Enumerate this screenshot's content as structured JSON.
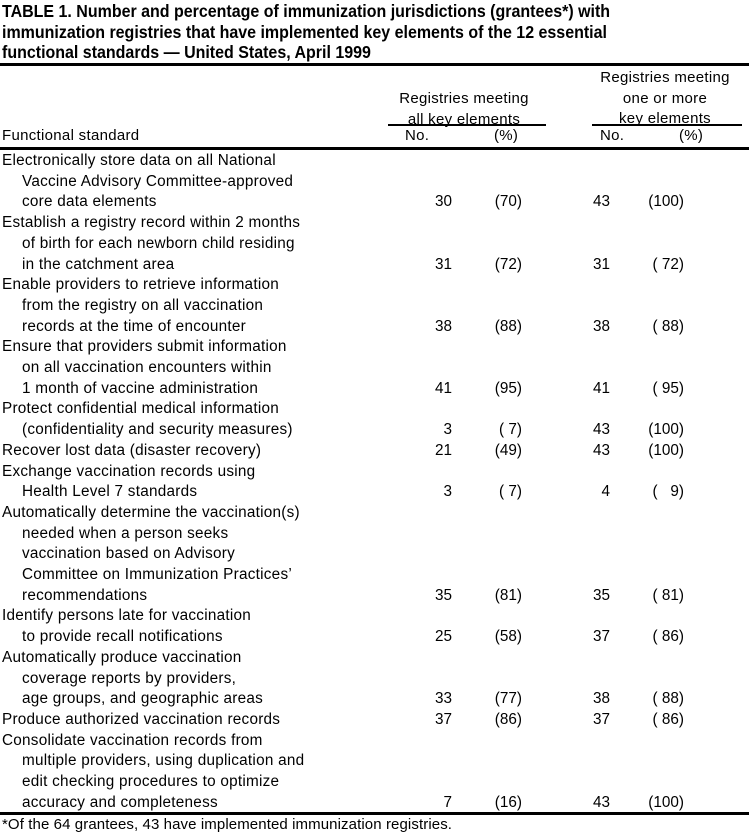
{
  "title": "TABLE 1. Number and percentage of immunization jurisdictions (grantees*) with immunization registries that have implemented key elements of the 12 essential functional standards — United States, April 1999",
  "title_lines": [
    "TABLE 1. Number and percentage of immunization jurisdictions (grantees*) with",
    "immunization registries that have implemented key elements of the 12 essential",
    "functional standards — United States, April 1999"
  ],
  "header": {
    "functional_standard": "Functional standard",
    "group_all": [
      "Registries meeting",
      "all key elements"
    ],
    "group_one": [
      "Registries meeting",
      "one or more",
      "key elements"
    ],
    "no": "No.",
    "pct": "(%)"
  },
  "rows": [
    {
      "lines": [
        "Electronically store data on all National",
        "Vaccine Advisory Committee-approved",
        "core data elements"
      ],
      "all_no": "30",
      "all_pct": "(70)",
      "one_no": "43",
      "one_pct": "(100)"
    },
    {
      "lines": [
        "Establish a registry record within 2 months",
        "of birth for each newborn child residing",
        "in the catchment area"
      ],
      "all_no": "31",
      "all_pct": "(72)",
      "one_no": "31",
      "one_pct": "( 72)"
    },
    {
      "lines": [
        "Enable providers to retrieve information",
        "from the registry on all vaccination",
        "records at the time of encounter"
      ],
      "all_no": "38",
      "all_pct": "(88)",
      "one_no": "38",
      "one_pct": "( 88)"
    },
    {
      "lines": [
        "Ensure that providers submit information",
        "on all vaccination encounters within",
        "1 month of vaccine administration"
      ],
      "all_no": "41",
      "all_pct": "(95)",
      "one_no": "41",
      "one_pct": "( 95)"
    },
    {
      "lines": [
        "Protect confidential medical information",
        "(confidentiality and security measures)"
      ],
      "all_no": "3",
      "all_pct": "( 7)",
      "one_no": "43",
      "one_pct": "(100)"
    },
    {
      "lines": [
        "Recover lost data (disaster recovery)"
      ],
      "all_no": "21",
      "all_pct": "(49)",
      "one_no": "43",
      "one_pct": "(100)"
    },
    {
      "lines": [
        "Exchange vaccination records using",
        "Health Level 7 standards"
      ],
      "all_no": "3",
      "all_pct": "( 7)",
      "one_no": "4",
      "one_pct": "(   9)"
    },
    {
      "lines": [
        "Automatically determine the vaccination(s)",
        "needed when a person seeks",
        "vaccination based on Advisory",
        "Committee on Immunization Practices’",
        "recommendations"
      ],
      "all_no": "35",
      "all_pct": "(81)",
      "one_no": "35",
      "one_pct": "( 81)"
    },
    {
      "lines": [
        "Identify persons late for vaccination",
        "to provide recall notifications"
      ],
      "all_no": "25",
      "all_pct": "(58)",
      "one_no": "37",
      "one_pct": "( 86)"
    },
    {
      "lines": [
        "Automatically produce vaccination",
        "coverage reports by providers,",
        "age groups, and geographic areas"
      ],
      "all_no": "33",
      "all_pct": "(77)",
      "one_no": "38",
      "one_pct": "( 88)"
    },
    {
      "lines": [
        "Produce authorized vaccination records"
      ],
      "all_no": "37",
      "all_pct": "(86)",
      "one_no": "37",
      "one_pct": "( 86)"
    },
    {
      "lines": [
        "Consolidate vaccination records from",
        "multiple providers, using duplication and",
        "edit checking procedures to optimize",
        "accuracy and completeness"
      ],
      "all_no": "7",
      "all_pct": "(16)",
      "one_no": "43",
      "one_pct": "(100)"
    }
  ],
  "footnote": "*Of the 64 grantees, 43 have implemented immunization registries."
}
